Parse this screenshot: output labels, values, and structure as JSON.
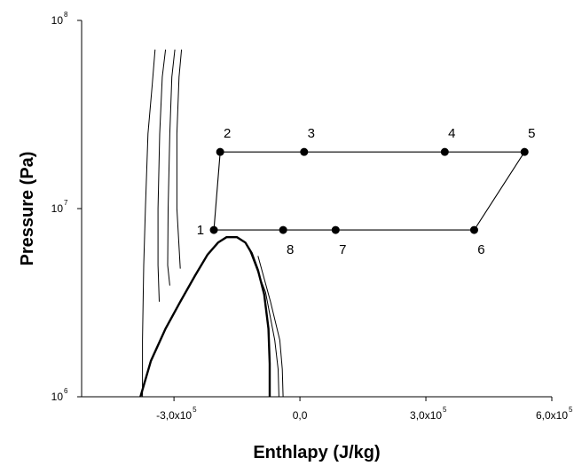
{
  "chart_data": {
    "type": "line",
    "xlabel": "Enthlapy (J/kg)",
    "ylabel": "Pressure (Pa)",
    "yscale": "log",
    "xlim": [
      -520000,
      600000
    ],
    "ylim": [
      1000000,
      100000000
    ],
    "x_ticks": [
      {
        "value": -300000,
        "mantissa": "-3,0x10",
        "exp": "5"
      },
      {
        "value": 0,
        "mantissa": "0,0",
        "exp": ""
      },
      {
        "value": 300000,
        "mantissa": "3,0x10",
        "exp": "5"
      },
      {
        "value": 600000,
        "mantissa": "6,0x10",
        "exp": "5"
      }
    ],
    "y_ticks": [
      {
        "value": 1000000,
        "base": "10",
        "exp": "6"
      },
      {
        "value": 10000000,
        "base": "10",
        "exp": "7"
      },
      {
        "value": 100000000,
        "base": "10",
        "exp": "8"
      }
    ],
    "grid": false,
    "cycle": {
      "points": [
        {
          "label": "1",
          "h": -205000,
          "p": 7700000
        },
        {
          "label": "2",
          "h": -190000,
          "p": 20000000
        },
        {
          "label": "3",
          "h": 10000,
          "p": 20000000
        },
        {
          "label": "4",
          "h": 345000,
          "p": 20000000
        },
        {
          "label": "5",
          "h": 535000,
          "p": 20000000
        },
        {
          "label": "6",
          "h": 415000,
          "p": 7700000
        },
        {
          "label": "7",
          "h": 85000,
          "p": 7700000
        },
        {
          "label": "8",
          "h": -40000,
          "p": 7700000
        }
      ],
      "order": [
        "1",
        "2",
        "3",
        "4",
        "5",
        "6",
        "7",
        "8",
        "1"
      ]
    },
    "saturation_dome": [
      [
        -380000,
        1000000
      ],
      [
        -355000,
        1550000
      ],
      [
        -320000,
        2300000
      ],
      [
        -285000,
        3200000
      ],
      [
        -250000,
        4400000
      ],
      [
        -220000,
        5700000
      ],
      [
        -195000,
        6600000
      ],
      [
        -175000,
        7050000
      ],
      [
        -150000,
        7050000
      ],
      [
        -130000,
        6600000
      ],
      [
        -115000,
        5800000
      ],
      [
        -100000,
        4700000
      ],
      [
        -85000,
        3500000
      ],
      [
        -75000,
        2300000
      ],
      [
        -72000,
        1500000
      ],
      [
        -72000,
        1000000
      ]
    ],
    "isotherms": [
      [
        [
          -375000,
          1000000
        ],
        [
          -375000,
          2000000
        ],
        [
          -372000,
          5000000
        ],
        [
          -368000,
          10000000
        ],
        [
          -362000,
          25000000
        ],
        [
          -352000,
          45000000
        ],
        [
          -345000,
          70000000
        ]
      ],
      [
        [
          -335000,
          3200000
        ],
        [
          -338000,
          5000000
        ],
        [
          -338000,
          10000000
        ],
        [
          -334000,
          25000000
        ],
        [
          -328000,
          50000000
        ],
        [
          -320000,
          70000000
        ]
      ],
      [
        [
          -310000,
          3900000
        ],
        [
          -315000,
          5000000
        ],
        [
          -314000,
          10000000
        ],
        [
          -310000,
          25000000
        ],
        [
          -305000,
          50000000
        ],
        [
          -298000,
          70000000
        ]
      ],
      [
        [
          -285000,
          4800000
        ],
        [
          -293000,
          10000000
        ],
        [
          -293000,
          25000000
        ],
        [
          -288000,
          50000000
        ],
        [
          -282000,
          70000000
        ]
      ],
      [
        [
          -120000,
          6000000
        ],
        [
          -82000,
          3600000
        ],
        [
          -60000,
          2000000
        ],
        [
          -52000,
          1400000
        ],
        [
          -50000,
          1000000
        ]
      ],
      [
        [
          -100000,
          5600000
        ],
        [
          -70000,
          3200000
        ],
        [
          -48000,
          2000000
        ],
        [
          -42000,
          1400000
        ],
        [
          -40000,
          1000000
        ]
      ]
    ]
  }
}
